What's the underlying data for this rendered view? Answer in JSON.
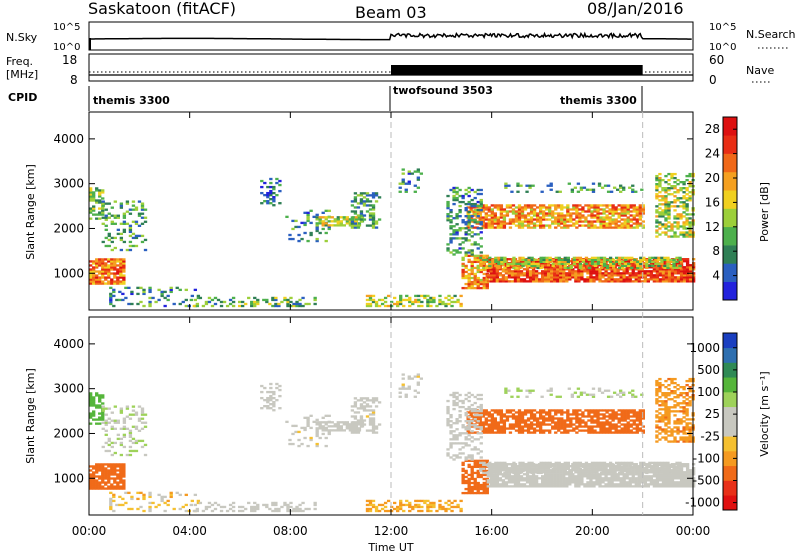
{
  "header": {
    "station": "Saskatoon (fitACF)",
    "beam": "Beam 03",
    "date": "08/Jan/2016"
  },
  "strips": {
    "nsky": {
      "label": "N.Sky",
      "ticks": [
        "10^5",
        "10^0"
      ],
      "right_label": "N.Search",
      "right_ticks": [
        "10^5",
        "10^0"
      ]
    },
    "freq": {
      "label_line1": "Freq.",
      "label_line2": "[MHz]",
      "ticks": [
        "18",
        "8"
      ],
      "right_label": "Nave",
      "right_ticks": [
        "60",
        "0"
      ]
    },
    "cpid": {
      "label": "CPID",
      "segments": [
        {
          "name": "themis 3300",
          "start": 0,
          "end": 12
        },
        {
          "name": "twofsound 3503",
          "start": 12,
          "end": 22
        },
        {
          "name": "themis 3300",
          "start": 22,
          "end": 24
        }
      ]
    }
  },
  "chart_data": [
    {
      "type": "heatmap",
      "panel": "power",
      "ylabel": "Slant Range [km]",
      "ylim": [
        180,
        4600
      ],
      "yticks": [
        1000,
        2000,
        3000,
        4000
      ],
      "xlim": [
        0,
        24
      ],
      "colorbar": {
        "label": "Power [dB]",
        "ticks": [
          4,
          8,
          12,
          16,
          20,
          24,
          28
        ],
        "range": [
          0,
          30
        ],
        "colors": [
          "#2222dd",
          "#2a5fc0",
          "#2f7f55",
          "#4db04c",
          "#9ccf3a",
          "#f0d020",
          "#f5a020",
          "#f06818",
          "#e82d14",
          "#dd1010"
        ]
      }
    },
    {
      "type": "heatmap",
      "panel": "velocity",
      "ylabel": "Slant Range [km]",
      "ylim": [
        180,
        4600
      ],
      "yticks": [
        1000,
        2000,
        3000,
        4000
      ],
      "xlim": [
        0,
        24
      ],
      "xticks": [
        "00:00",
        "04:00",
        "08:00",
        "12:00",
        "16:00",
        "20:00",
        "00:00"
      ],
      "xlabel": "Time UT",
      "colorbar": {
        "label": "Velocity [m s⁻¹]",
        "ticks": [
          "1000",
          "500",
          "100",
          "25",
          "-25",
          "-100",
          "-500",
          "-1000"
        ],
        "colors": [
          "#1a3fc0",
          "#2e6fb0",
          "#2f8a55",
          "#55b53a",
          "#9ed25a",
          "#c8c8c0",
          "#c8c8c0",
          "#f5c030",
          "#f59a20",
          "#f06a18",
          "#e83018",
          "#e01010"
        ]
      }
    }
  ]
}
